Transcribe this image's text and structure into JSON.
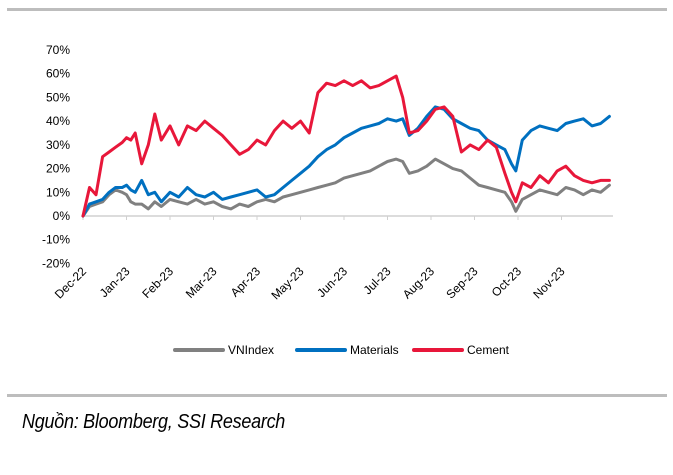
{
  "chart_data": {
    "type": "line",
    "title": "",
    "xlabel": "",
    "ylabel": "",
    "ylim": [
      -0.2,
      0.7
    ],
    "yticks": [
      "70%",
      "60%",
      "50%",
      "40%",
      "30%",
      "20%",
      "10%",
      "0%",
      "-10%",
      "-20%"
    ],
    "ytick_values": [
      0.7,
      0.6,
      0.5,
      0.4,
      0.3,
      0.2,
      0.1,
      0.0,
      -0.1,
      -0.2
    ],
    "categories": [
      "Dec-22",
      "Jan-23",
      "Feb-23",
      "Mar-23",
      "Apr-23",
      "May-23",
      "Jun-23",
      "Jul-23",
      "Aug-23",
      "Sep-23",
      "Oct-23",
      "Nov-23"
    ],
    "x_range_months": [
      0,
      12.2
    ],
    "grid": false,
    "legend_position": "bottom",
    "series": [
      {
        "name": "VNIndex",
        "color": "#808080",
        "x": [
          0,
          0.15,
          0.3,
          0.45,
          0.6,
          0.75,
          0.9,
          1.0,
          1.1,
          1.2,
          1.35,
          1.5,
          1.65,
          1.8,
          2.0,
          2.2,
          2.4,
          2.6,
          2.8,
          3.0,
          3.2,
          3.4,
          3.6,
          3.8,
          4.0,
          4.2,
          4.4,
          4.6,
          4.8,
          5.0,
          5.2,
          5.4,
          5.6,
          5.8,
          6.0,
          6.2,
          6.4,
          6.6,
          6.8,
          7.0,
          7.2,
          7.35,
          7.5,
          7.7,
          7.9,
          8.1,
          8.3,
          8.5,
          8.7,
          8.9,
          9.1,
          9.3,
          9.5,
          9.7,
          9.85,
          9.95,
          10.1,
          10.3,
          10.5,
          10.7,
          10.9,
          11.1,
          11.3,
          11.5,
          11.7,
          11.9,
          12.1
        ],
        "values": [
          0.0,
          0.04,
          0.05,
          0.06,
          0.09,
          0.11,
          0.1,
          0.09,
          0.06,
          0.05,
          0.05,
          0.03,
          0.06,
          0.04,
          0.07,
          0.06,
          0.05,
          0.07,
          0.05,
          0.06,
          0.04,
          0.03,
          0.05,
          0.04,
          0.06,
          0.07,
          0.06,
          0.08,
          0.09,
          0.1,
          0.11,
          0.12,
          0.13,
          0.14,
          0.16,
          0.17,
          0.18,
          0.19,
          0.21,
          0.23,
          0.24,
          0.23,
          0.18,
          0.19,
          0.21,
          0.24,
          0.22,
          0.2,
          0.19,
          0.16,
          0.13,
          0.12,
          0.11,
          0.1,
          0.06,
          0.02,
          0.07,
          0.09,
          0.11,
          0.1,
          0.09,
          0.12,
          0.11,
          0.09,
          0.11,
          0.1,
          0.13
        ]
      },
      {
        "name": "Materials",
        "color": "#0070c0",
        "x": [
          0,
          0.15,
          0.3,
          0.45,
          0.6,
          0.75,
          0.9,
          1.0,
          1.1,
          1.2,
          1.35,
          1.5,
          1.65,
          1.8,
          2.0,
          2.2,
          2.4,
          2.6,
          2.8,
          3.0,
          3.2,
          3.4,
          3.6,
          3.8,
          4.0,
          4.2,
          4.4,
          4.6,
          4.8,
          5.0,
          5.2,
          5.4,
          5.6,
          5.8,
          6.0,
          6.2,
          6.4,
          6.6,
          6.8,
          7.0,
          7.2,
          7.35,
          7.5,
          7.7,
          7.9,
          8.1,
          8.3,
          8.5,
          8.7,
          8.9,
          9.1,
          9.3,
          9.5,
          9.7,
          9.85,
          9.95,
          10.1,
          10.3,
          10.5,
          10.7,
          10.9,
          11.1,
          11.3,
          11.5,
          11.7,
          11.9,
          12.1
        ],
        "values": [
          0.0,
          0.05,
          0.06,
          0.07,
          0.1,
          0.12,
          0.12,
          0.13,
          0.11,
          0.1,
          0.15,
          0.09,
          0.1,
          0.06,
          0.1,
          0.08,
          0.12,
          0.09,
          0.08,
          0.1,
          0.07,
          0.08,
          0.09,
          0.1,
          0.11,
          0.08,
          0.09,
          0.12,
          0.15,
          0.18,
          0.21,
          0.25,
          0.28,
          0.3,
          0.33,
          0.35,
          0.37,
          0.38,
          0.39,
          0.41,
          0.4,
          0.41,
          0.34,
          0.37,
          0.42,
          0.46,
          0.45,
          0.41,
          0.39,
          0.37,
          0.36,
          0.32,
          0.3,
          0.28,
          0.22,
          0.19,
          0.32,
          0.36,
          0.38,
          0.37,
          0.36,
          0.39,
          0.4,
          0.41,
          0.38,
          0.39,
          0.42
        ]
      },
      {
        "name": "Cement",
        "color": "#e8173a",
        "x": [
          0,
          0.15,
          0.3,
          0.45,
          0.6,
          0.75,
          0.9,
          1.0,
          1.1,
          1.2,
          1.35,
          1.5,
          1.65,
          1.8,
          2.0,
          2.2,
          2.4,
          2.6,
          2.8,
          3.0,
          3.2,
          3.4,
          3.6,
          3.8,
          4.0,
          4.2,
          4.4,
          4.6,
          4.8,
          5.0,
          5.2,
          5.4,
          5.6,
          5.8,
          6.0,
          6.2,
          6.4,
          6.6,
          6.8,
          7.0,
          7.2,
          7.35,
          7.5,
          7.7,
          7.9,
          8.1,
          8.3,
          8.5,
          8.7,
          8.9,
          9.1,
          9.3,
          9.5,
          9.7,
          9.85,
          9.95,
          10.1,
          10.3,
          10.5,
          10.7,
          10.9,
          11.1,
          11.3,
          11.5,
          11.7,
          11.9,
          12.1
        ],
        "values": [
          0.0,
          0.12,
          0.09,
          0.25,
          0.27,
          0.29,
          0.31,
          0.33,
          0.32,
          0.35,
          0.22,
          0.3,
          0.43,
          0.32,
          0.38,
          0.3,
          0.38,
          0.36,
          0.4,
          0.37,
          0.34,
          0.3,
          0.26,
          0.28,
          0.32,
          0.3,
          0.36,
          0.4,
          0.37,
          0.4,
          0.35,
          0.52,
          0.56,
          0.55,
          0.57,
          0.55,
          0.57,
          0.54,
          0.55,
          0.57,
          0.59,
          0.5,
          0.35,
          0.36,
          0.4,
          0.45,
          0.46,
          0.42,
          0.27,
          0.3,
          0.28,
          0.32,
          0.29,
          0.18,
          0.1,
          0.06,
          0.14,
          0.12,
          0.17,
          0.14,
          0.19,
          0.21,
          0.17,
          0.15,
          0.14,
          0.15,
          0.15
        ]
      }
    ]
  },
  "legend": {
    "items": [
      {
        "label": "VNIndex",
        "color": "#808080"
      },
      {
        "label": "Materials",
        "color": "#0070c0"
      },
      {
        "label": "Cement",
        "color": "#e8173a"
      }
    ]
  },
  "source_text": "Nguồn: Bloomberg, SSI Research"
}
